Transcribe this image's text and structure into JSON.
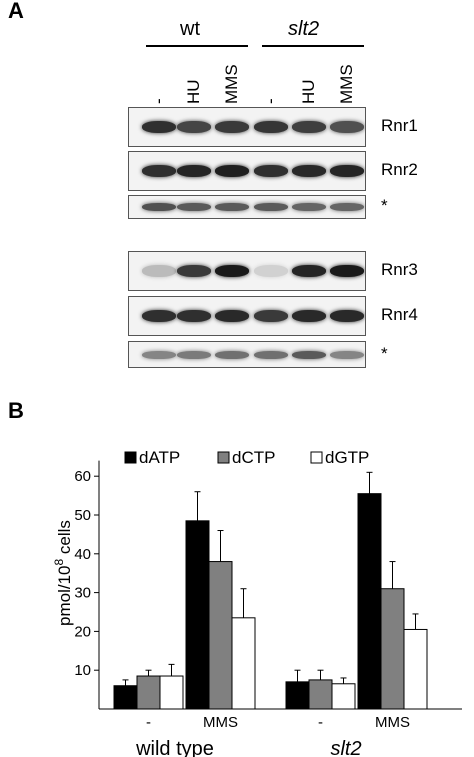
{
  "panel_a": {
    "label": "A",
    "groups": [
      {
        "label": "wt",
        "italic": false
      },
      {
        "label": "slt2",
        "italic": true
      }
    ],
    "lanes": [
      "-",
      "HU",
      "MMS",
      "-",
      "HU",
      "MMS"
    ],
    "blots": [
      {
        "label": "Rnr1",
        "intensity": [
          0.85,
          0.75,
          0.8,
          0.82,
          0.78,
          0.7
        ]
      },
      {
        "label": "Rnr2",
        "intensity": [
          0.85,
          0.9,
          0.92,
          0.85,
          0.88,
          0.9
        ]
      },
      {
        "label": "*",
        "intensity": [
          0.7,
          0.65,
          0.65,
          0.65,
          0.6,
          0.6
        ]
      },
      {
        "label": "Rnr3",
        "intensity": [
          0.2,
          0.8,
          0.95,
          0.1,
          0.9,
          0.95
        ]
      },
      {
        "label": "Rnr4",
        "intensity": [
          0.85,
          0.85,
          0.88,
          0.8,
          0.88,
          0.88
        ]
      },
      {
        "label": "*",
        "intensity": [
          0.45,
          0.5,
          0.55,
          0.55,
          0.65,
          0.45
        ]
      }
    ]
  },
  "panel_b": {
    "label": "B",
    "colors": {
      "dATP": "#000000",
      "dCTP": "#808080",
      "dGTP": "#ffffff"
    },
    "chart_data": {
      "type": "bar",
      "ylabel_main": "pmol/10",
      "ylabel_sup": "8",
      "ylabel_tail": " cells",
      "ylim": [
        0,
        65
      ],
      "yticks": [
        "10",
        "20",
        "30",
        "40",
        "50",
        "60"
      ],
      "legend": [
        "dATP",
        "dCTP",
        "dGTP"
      ],
      "categories": [
        "-",
        "MMS",
        "-",
        "MMS"
      ],
      "group_labels": [
        {
          "label": "wild type",
          "italic": false
        },
        {
          "label": "slt2",
          "italic": true
        }
      ],
      "series": [
        {
          "name": "dATP",
          "values": [
            6,
            48.5,
            7,
            55.5
          ],
          "errors": [
            1.5,
            7.5,
            3,
            5.5
          ]
        },
        {
          "name": "dCTP",
          "values": [
            8.5,
            38,
            7.5,
            31
          ],
          "errors": [
            1.5,
            8,
            2.5,
            7
          ]
        },
        {
          "name": "dGTP",
          "values": [
            8.5,
            23.5,
            6.5,
            20.5
          ],
          "errors": [
            3,
            7.5,
            1.5,
            4
          ]
        }
      ]
    }
  }
}
